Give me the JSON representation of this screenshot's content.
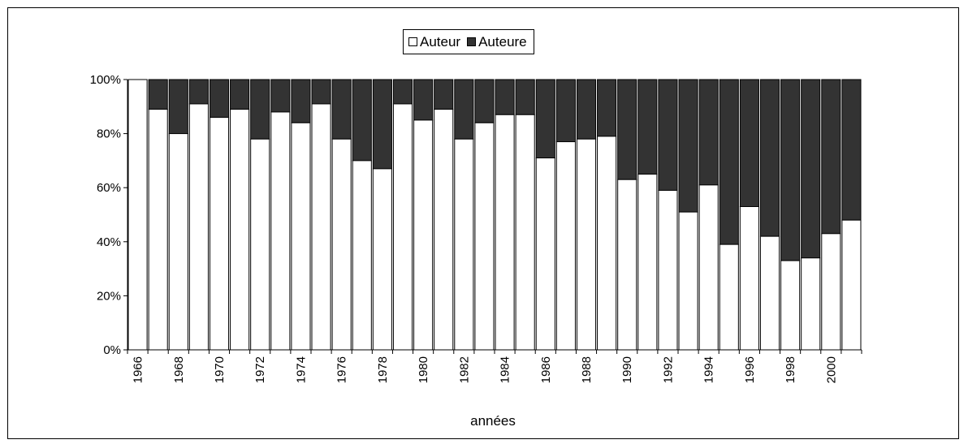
{
  "chart_data": {
    "type": "bar",
    "stacked": "percent",
    "xlabel": "années",
    "ylabel": "",
    "ylim": [
      0,
      100
    ],
    "y_tick_labels": [
      "0%",
      "20%",
      "40%",
      "60%",
      "80%",
      "100%"
    ],
    "x_tick_labels": [
      "1966",
      "1968",
      "1970",
      "1972",
      "1974",
      "1976",
      "1978",
      "1980",
      "1982",
      "1984",
      "1986",
      "1988",
      "1990",
      "1992",
      "1994",
      "1996",
      "1998",
      "2000"
    ],
    "legend_position": "top-center",
    "categories": [
      "1966",
      "1967",
      "1968",
      "1969",
      "1970",
      "1971",
      "1972",
      "1973",
      "1974",
      "1975",
      "1976",
      "1977",
      "1978",
      "1979",
      "1980",
      "1981",
      "1982",
      "1983",
      "1984",
      "1985",
      "1986",
      "1987",
      "1988",
      "1989",
      "1990",
      "1991",
      "1992",
      "1993",
      "1994",
      "1995",
      "1996",
      "1997",
      "1998",
      "1999",
      "2000",
      "2001"
    ],
    "series": [
      {
        "name": "Auteur",
        "color": "#ffffff",
        "values": [
          100,
          89,
          80,
          91,
          86,
          89,
          78,
          88,
          84,
          91,
          78,
          70,
          67,
          91,
          85,
          89,
          78,
          84,
          87,
          87,
          71,
          77,
          78,
          79,
          63,
          65,
          59,
          51,
          61,
          39,
          53,
          42,
          33,
          34,
          43,
          48
        ]
      },
      {
        "name": "Auteure",
        "color": "#333333",
        "values": [
          0,
          11,
          20,
          9,
          14,
          11,
          22,
          12,
          16,
          9,
          22,
          30,
          33,
          9,
          15,
          11,
          22,
          16,
          13,
          13,
          29,
          23,
          22,
          21,
          37,
          35,
          41,
          49,
          39,
          61,
          47,
          58,
          67,
          66,
          57,
          52
        ]
      }
    ]
  }
}
